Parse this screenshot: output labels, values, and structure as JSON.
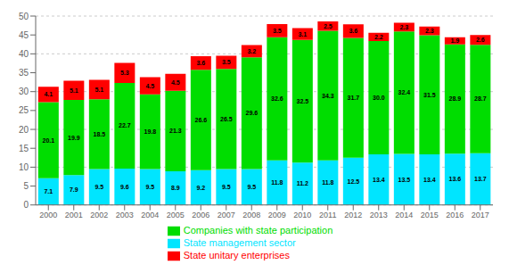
{
  "chart_data": {
    "type": "bar",
    "stacked": true,
    "grid": true,
    "legend": "bottom",
    "data_labels": true,
    "categories": [
      2000,
      2001,
      2002,
      2003,
      2004,
      2005,
      2006,
      2007,
      2008,
      2009,
      2010,
      2011,
      2012,
      2013,
      2014,
      2015,
      2016,
      2017
    ],
    "ylim": [
      0,
      50
    ],
    "yticks": [
      0,
      5,
      10,
      15,
      20,
      25,
      30,
      35,
      40,
      45,
      50
    ],
    "series": [
      {
        "name": "State management sector",
        "color": "#00E5FF",
        "values": [
          7.1,
          7.9,
          9.5,
          9.6,
          9.5,
          8.9,
          9.2,
          9.5,
          9.5,
          11.8,
          11.2,
          11.8,
          12.5,
          13.4,
          13.5,
          13.4,
          13.6,
          13.7
        ]
      },
      {
        "name": "Companies with state participation",
        "color": "#00DD00",
        "values": [
          20.1,
          19.9,
          18.5,
          22.7,
          19.8,
          21.3,
          26.6,
          26.5,
          29.6,
          32.6,
          32.5,
          34.3,
          31.7,
          30.0,
          32.4,
          31.5,
          28.9,
          28.7
        ],
        "value_labels": [
          "20.1",
          "19.9",
          "18.5",
          "22.7",
          "19.8",
          "21.3",
          "26.6",
          "26.5",
          "29.6",
          "32.6",
          "32.5",
          "34.3",
          "31.7",
          "30.0",
          "32.4",
          "31.5",
          "28.9",
          "28.7"
        ]
      },
      {
        "name": "State unitary enterprises",
        "color": "#FF0000",
        "values": [
          4.1,
          5.1,
          5.1,
          5.3,
          4.5,
          4.5,
          3.6,
          3.5,
          3.2,
          3.5,
          3.1,
          2.5,
          3.6,
          2.2,
          2.3,
          2.3,
          1.9,
          2.6
        ]
      }
    ]
  }
}
